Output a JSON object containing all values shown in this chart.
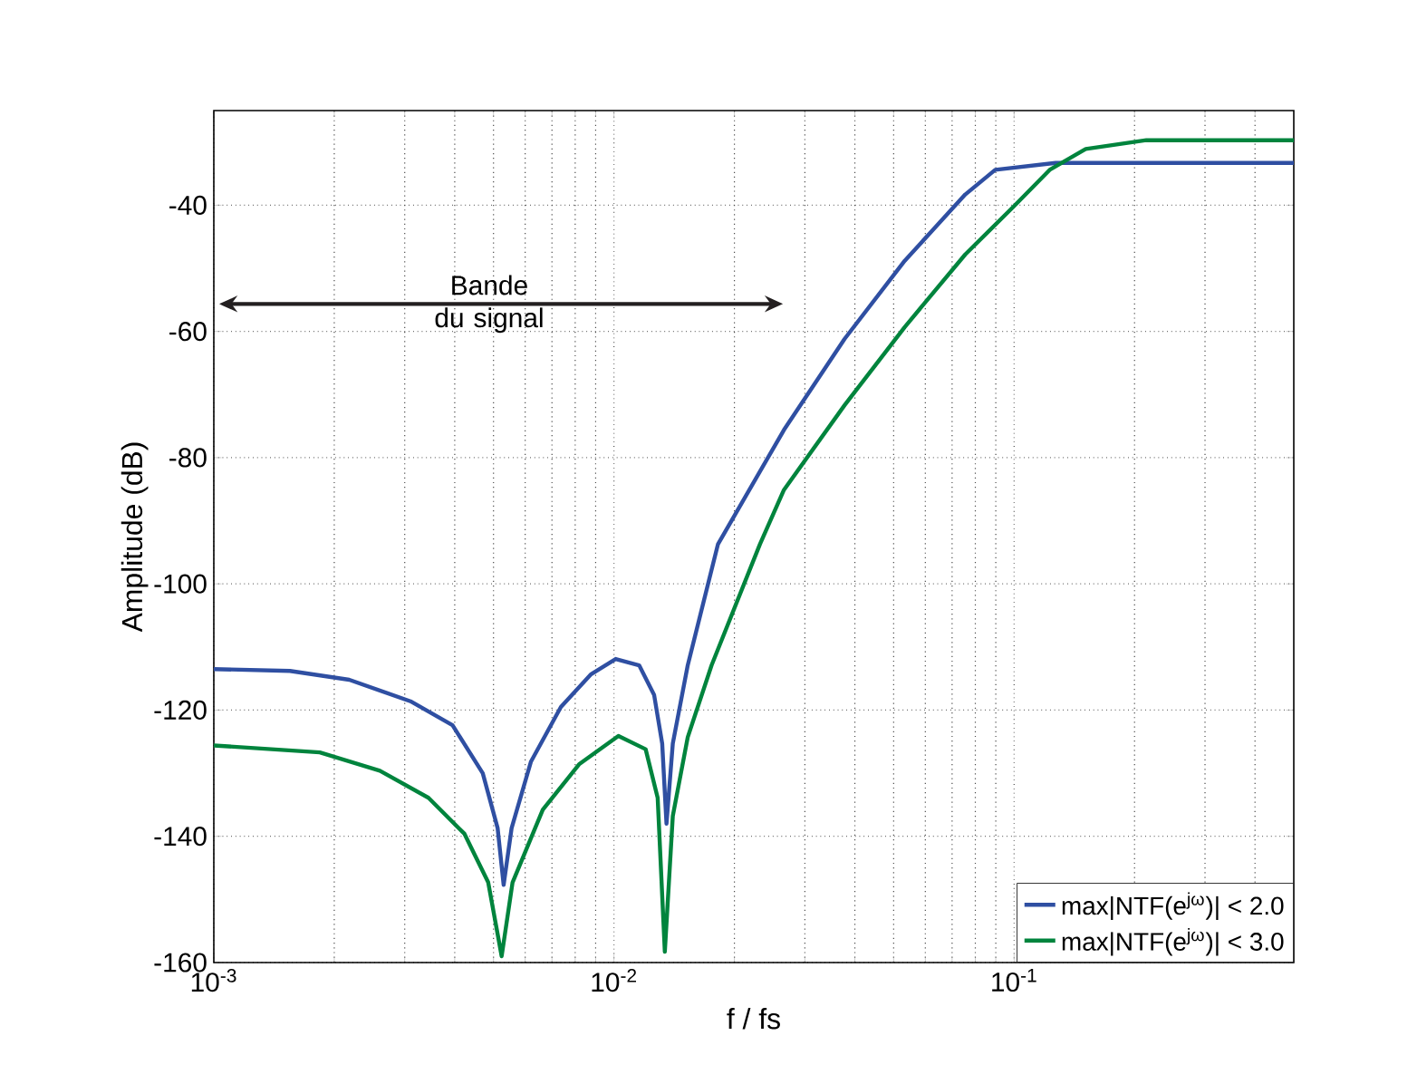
{
  "chart_data": {
    "type": "line",
    "xlabel": "f / fs",
    "ylabel": "Amplitude (dB)",
    "xlim": [
      0.001,
      0.5
    ],
    "ylim": [
      -160,
      -25
    ],
    "xticks": [
      {
        "value": 0.001,
        "label": "10$^{-3}$"
      },
      {
        "value": 0.01,
        "label": "10$^{-2}$"
      },
      {
        "value": 0.1,
        "label": "10$^{-1}$"
      }
    ],
    "yticks": [
      -160,
      -140,
      -120,
      -100,
      -80,
      -60,
      -40
    ],
    "log": "x",
    "grid": true,
    "legend": "bottom right",
    "line_style": "solid",
    "annotations": [
      "Bande du signal"
    ],
    "series": [
      {
        "name": "max|NTF(e$^{jω}$)| < 2.0",
        "color": "#2f4fa2",
        "x": [
          0.001,
          0.00155,
          0.00218,
          0.0031,
          0.00395,
          0.0047,
          0.00512,
          0.0053,
          0.00555,
          0.0062,
          0.00737,
          0.00877,
          0.0101,
          0.01156,
          0.0126,
          0.0132,
          0.01353,
          0.01403,
          0.01529,
          0.0182,
          0.0266,
          0.0377,
          0.0533,
          0.0755,
          0.0897,
          0.127,
          0.5
        ],
        "values": [
          -113.5,
          -113.8,
          -115.2,
          -118.6,
          -122.4,
          -130,
          -138.7,
          -147.7,
          -138.7,
          -128.2,
          -119.5,
          -114.3,
          -111.9,
          -112.9,
          -117.6,
          -125.3,
          -138,
          -125.3,
          -112.9,
          -93.7,
          -75.6,
          -61.2,
          -48.8,
          -38.3,
          -34.4,
          -33.3,
          -33.3
        ]
      },
      {
        "name": "max|NTF(e$^{jω}$)| < 3.0",
        "color": "#00843d",
        "x": [
          0.001,
          0.00184,
          0.0026,
          0.00344,
          0.00423,
          0.00485,
          0.00524,
          0.00558,
          0.00664,
          0.00818,
          0.01026,
          0.012,
          0.01286,
          0.0134,
          0.01403,
          0.01529,
          0.01754,
          0.02317,
          0.0266,
          0.0377,
          0.0533,
          0.0755,
          0.0998,
          0.1227,
          0.151,
          0.214,
          0.5
        ],
        "values": [
          -125.6,
          -126.7,
          -129.6,
          -133.9,
          -139.6,
          -147.3,
          -159,
          -147.3,
          -135.8,
          -128.6,
          -124.1,
          -126.2,
          -133.9,
          -158.3,
          -136.8,
          -124.3,
          -112.9,
          -93.7,
          -85.1,
          -71.7,
          -59.3,
          -47.8,
          -40.2,
          -34.4,
          -31.1,
          -29.7,
          -29.7
        ]
      }
    ]
  }
}
